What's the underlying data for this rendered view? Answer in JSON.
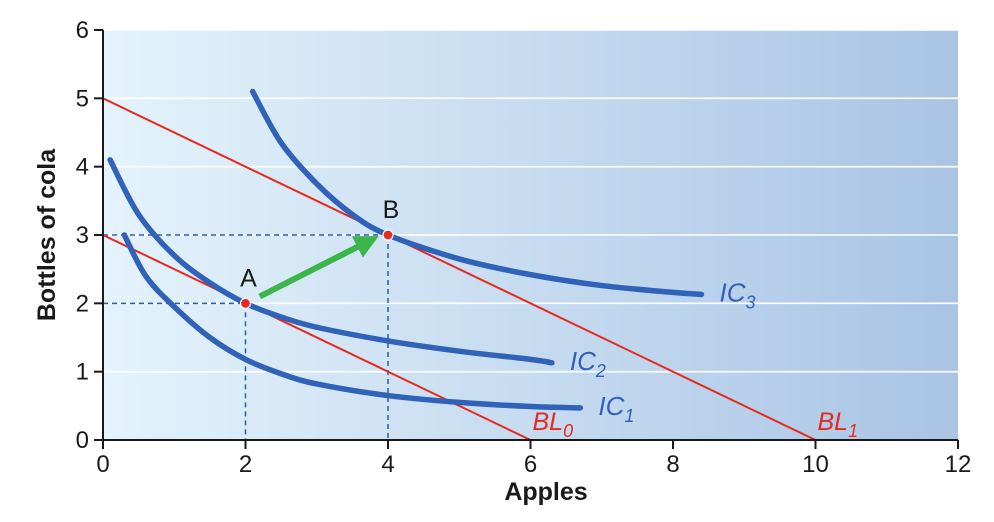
{
  "chart_data": {
    "type": "line",
    "xlabel": "Apples",
    "ylabel": "Bottles of cola",
    "xlim": [
      0,
      12
    ],
    "ylim": [
      0,
      6
    ],
    "xticks": [
      "0",
      "2",
      "4",
      "6",
      "8",
      "10",
      "12"
    ],
    "yticks": [
      "0",
      "1",
      "2",
      "3",
      "4",
      "5",
      "6"
    ],
    "grid": "horizontal",
    "colors": {
      "indifference": "#2f62b8",
      "budget": "#e8291f",
      "shift_arrow": "#3cb64a",
      "point": "#e8291f",
      "guide": "#2a5ab8",
      "bg_left": "#e4f3fc",
      "bg_right": "#a9c4e4"
    },
    "budget_lines": [
      {
        "name": "BL",
        "sub": "0",
        "x": [
          0,
          6
        ],
        "y": [
          3,
          0
        ]
      },
      {
        "name": "BL",
        "sub": "1",
        "x": [
          0,
          10
        ],
        "y": [
          5,
          0
        ]
      }
    ],
    "indifference_curves": [
      {
        "name": "IC",
        "sub": "1",
        "x": [
          0.3,
          0.6,
          1.0,
          1.5,
          2.0,
          2.5,
          3.0,
          4.0,
          5.0,
          6.0,
          6.7
        ],
        "y": [
          3.0,
          2.4,
          1.95,
          1.5,
          1.18,
          0.97,
          0.82,
          0.65,
          0.55,
          0.49,
          0.47
        ]
      },
      {
        "name": "IC",
        "sub": "2",
        "x": [
          0.1,
          0.5,
          1.0,
          1.5,
          2.0,
          2.5,
          3.0,
          4.0,
          5.0,
          6.0,
          6.3
        ],
        "y": [
          4.1,
          3.3,
          2.7,
          2.3,
          2.0,
          1.8,
          1.65,
          1.45,
          1.3,
          1.18,
          1.13
        ]
      },
      {
        "name": "IC",
        "sub": "3",
        "x": [
          2.1,
          2.5,
          3.0,
          3.5,
          4.0,
          5.0,
          6.0,
          7.0,
          8.0,
          8.4
        ],
        "y": [
          5.1,
          4.35,
          3.75,
          3.3,
          3.0,
          2.65,
          2.42,
          2.26,
          2.16,
          2.13
        ]
      }
    ],
    "points": [
      {
        "label": "A",
        "x": 2,
        "y": 2
      },
      {
        "label": "B",
        "x": 4,
        "y": 3
      }
    ],
    "arrow": {
      "from": [
        2.2,
        2.1
      ],
      "to": [
        3.75,
        2.92
      ]
    }
  }
}
